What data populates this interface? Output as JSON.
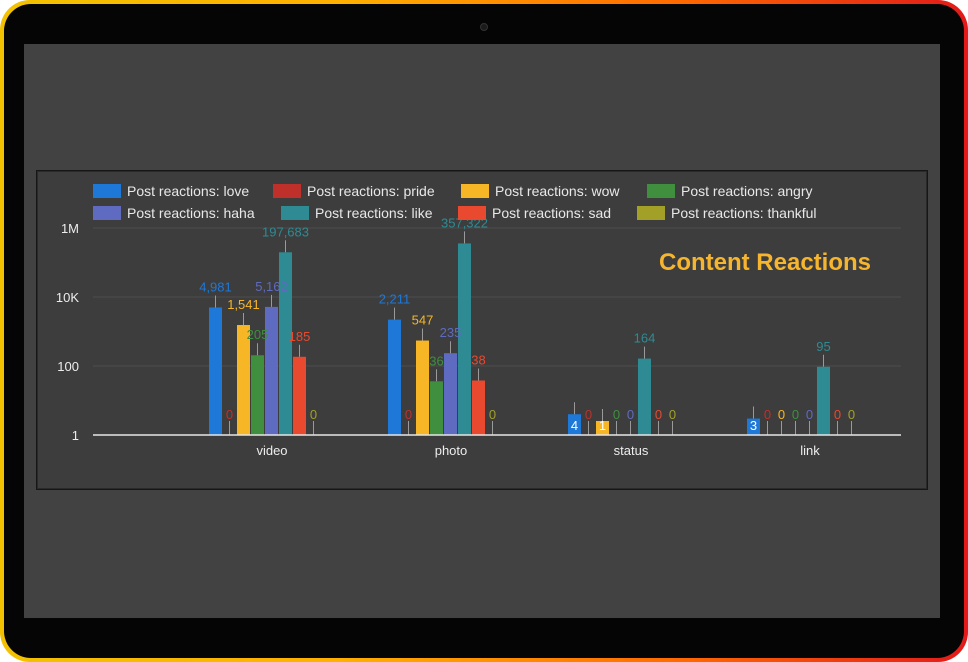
{
  "chart_data": {
    "type": "bar",
    "title": "Content Reactions",
    "y_scale": "log",
    "ylim": [
      1,
      1000000
    ],
    "y_ticks": [
      {
        "value": 1,
        "label": "1"
      },
      {
        "value": 100,
        "label": "100"
      },
      {
        "value": 10000,
        "label": "10K"
      },
      {
        "value": 1000000,
        "label": "1M"
      }
    ],
    "grid": true,
    "legend_position": "top",
    "categories": [
      "video",
      "photo",
      "status",
      "link"
    ],
    "series": [
      {
        "name": "Post reactions: love",
        "color": "#1e78d8",
        "values": [
          4981,
          2211,
          4,
          3
        ],
        "labels": [
          "4,981",
          "2,211",
          "4",
          "3"
        ]
      },
      {
        "name": "Post reactions: pride",
        "color": "#c0302a",
        "values": [
          0,
          0,
          0,
          0
        ],
        "labels": [
          "0",
          "0",
          "0",
          "0"
        ]
      },
      {
        "name": "Post reactions: wow",
        "color": "#f6b626",
        "values": [
          1541,
          547,
          1,
          0
        ],
        "labels": [
          "1,541",
          "547",
          "1",
          "0"
        ]
      },
      {
        "name": "Post reactions: angry",
        "color": "#3f8f3f",
        "values": [
          205,
          36,
          0,
          0
        ],
        "labels": [
          "205",
          "36",
          "0",
          "0"
        ]
      },
      {
        "name": "Post reactions: haha",
        "color": "#5e6bc0",
        "values": [
          5162,
          235,
          0,
          0
        ],
        "labels": [
          "5,162",
          "235",
          "0",
          "0"
        ]
      },
      {
        "name": "Post reactions: like",
        "color": "#2e8b93",
        "values": [
          197683,
          357322,
          164,
          95
        ],
        "labels": [
          "197,683",
          "357,322",
          "164",
          "95"
        ]
      },
      {
        "name": "Post reactions: sad",
        "color": "#e8492f",
        "values": [
          185,
          38,
          0,
          0
        ],
        "labels": [
          "185",
          "38",
          "0",
          "0"
        ]
      },
      {
        "name": "Post reactions: thankful",
        "color": "#a3a028",
        "values": [
          0,
          0,
          0,
          0
        ],
        "labels": [
          "0",
          "0",
          "0",
          "0"
        ]
      }
    ]
  }
}
